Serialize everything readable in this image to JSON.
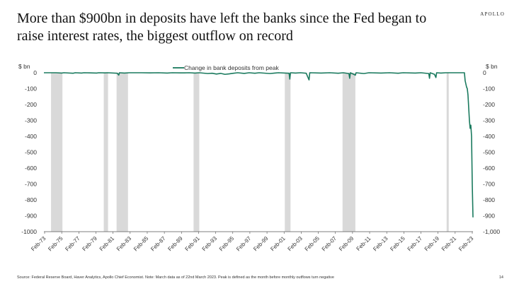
{
  "slide": {
    "title": "More than $900bn in deposits have left the banks since the Fed began to raise interest rates, the biggest outflow on record",
    "brand": "APOLLO",
    "source": "Source: Federal Reserve Board, Haver Analytics, Apollo Chief Economist. Note: March data as of 22nd March 2023. Peak is defined as the month before monthly outflows turn negative",
    "page_number": "14"
  },
  "colors": {
    "line": "#1a7a5e",
    "recession": "#d9d9d9",
    "axis": "#555555"
  },
  "chart_data": {
    "type": "line",
    "title": "",
    "xlabel": "",
    "ylabel_left": "$ bn",
    "ylabel_right": "$ bn",
    "legend": {
      "label": "Change in bank deposits from peak",
      "position": "top-center"
    },
    "grid": false,
    "xlim": [
      "1973-01",
      "2023-03"
    ],
    "ylim": [
      -1000,
      0
    ],
    "yticks": [
      0,
      -100,
      -200,
      -300,
      -400,
      -500,
      -600,
      -700,
      -800,
      -900,
      -1000
    ],
    "ytick_labels_left": [
      "0",
      "-100",
      "-200",
      "-300",
      "-400",
      "-500",
      "-600",
      "-700",
      "-800",
      "-900",
      "-1000"
    ],
    "ytick_labels_right": [
      "0",
      "-100",
      "-200",
      "-300",
      "-400",
      "-500",
      "-600",
      "-700",
      "-800",
      "-900",
      "-1,000"
    ],
    "xtick_labels": [
      "Feb-73",
      "Feb-75",
      "Feb-77",
      "Feb-79",
      "Feb-81",
      "Feb-83",
      "Feb-85",
      "Feb-87",
      "Feb-89",
      "Feb-91",
      "Feb-93",
      "Feb-95",
      "Feb-97",
      "Feb-99",
      "Feb-01",
      "Feb-03",
      "Feb-05",
      "Feb-07",
      "Feb-09",
      "Feb-11",
      "Feb-13",
      "Feb-15",
      "Feb-17",
      "Feb-19",
      "Feb-21",
      "Feb-23"
    ],
    "recessions": [
      [
        "1973-11",
        "1975-03"
      ],
      [
        "1980-01",
        "1980-07"
      ],
      [
        "1981-07",
        "1982-11"
      ],
      [
        "1990-07",
        "1991-03"
      ],
      [
        "2001-03",
        "2001-11"
      ],
      [
        "2007-12",
        "2009-06"
      ],
      [
        "2020-02",
        "2020-04"
      ]
    ],
    "series": [
      {
        "name": "Change in bank deposits from peak",
        "points": [
          [
            "1973-01",
            0
          ],
          [
            "1974-06",
            0
          ],
          [
            "1975-02",
            -2
          ],
          [
            "1975-05",
            0
          ],
          [
            "1976-06",
            -3
          ],
          [
            "1976-09",
            0
          ],
          [
            "1977-06",
            -2
          ],
          [
            "1977-09",
            0
          ],
          [
            "1978-06",
            -1
          ],
          [
            "1979-03",
            -2
          ],
          [
            "1979-06",
            0
          ],
          [
            "1980-03",
            -1
          ],
          [
            "1980-06",
            0
          ],
          [
            "1981-08",
            -3
          ],
          [
            "1981-10",
            -15
          ],
          [
            "1981-11",
            0
          ],
          [
            "1982-06",
            -2
          ],
          [
            "1983-01",
            0
          ],
          [
            "1984-06",
            0
          ],
          [
            "1985-06",
            -1
          ],
          [
            "1986-06",
            0
          ],
          [
            "1987-06",
            -2
          ],
          [
            "1988-01",
            0
          ],
          [
            "1989-06",
            -1
          ],
          [
            "1990-01",
            0
          ],
          [
            "1990-09",
            -2
          ],
          [
            "1991-03",
            0
          ],
          [
            "1992-03",
            -5
          ],
          [
            "1992-09",
            -3
          ],
          [
            "1993-03",
            -8
          ],
          [
            "1993-09",
            -4
          ],
          [
            "1994-03",
            -10
          ],
          [
            "1994-09",
            -7
          ],
          [
            "1995-03",
            -3
          ],
          [
            "1995-09",
            0
          ],
          [
            "1996-06",
            -4
          ],
          [
            "1997-01",
            0
          ],
          [
            "1997-09",
            -3
          ],
          [
            "1998-03",
            0
          ],
          [
            "1999-06",
            -5
          ],
          [
            "2000-01",
            -2
          ],
          [
            "2000-06",
            0
          ],
          [
            "2001-09",
            -3
          ],
          [
            "2001-10",
            -40
          ],
          [
            "2001-11",
            0
          ],
          [
            "2002-06",
            -2
          ],
          [
            "2003-01",
            0
          ],
          [
            "2003-09",
            -3
          ],
          [
            "2004-01",
            -45
          ],
          [
            "2004-02",
            0
          ],
          [
            "2005-06",
            -2
          ],
          [
            "2006-06",
            0
          ],
          [
            "2007-06",
            -3
          ],
          [
            "2008-01",
            0
          ],
          [
            "2008-09",
            -5
          ],
          [
            "2008-10",
            -35
          ],
          [
            "2008-11",
            0
          ],
          [
            "2009-06",
            -15
          ],
          [
            "2009-07",
            0
          ],
          [
            "2010-06",
            -5
          ],
          [
            "2011-01",
            0
          ],
          [
            "2012-06",
            -2
          ],
          [
            "2013-06",
            0
          ],
          [
            "2014-06",
            -3
          ],
          [
            "2015-01",
            0
          ],
          [
            "2016-06",
            -2
          ],
          [
            "2017-02",
            0
          ],
          [
            "2018-01",
            -5
          ],
          [
            "2018-02",
            -35
          ],
          [
            "2018-03",
            0
          ],
          [
            "2018-09",
            -10
          ],
          [
            "2018-11",
            -30
          ],
          [
            "2018-12",
            0
          ],
          [
            "2019-06",
            -2
          ],
          [
            "2020-01",
            0
          ],
          [
            "2021-06",
            0
          ],
          [
            "2022-03",
            0
          ],
          [
            "2022-04",
            -50
          ],
          [
            "2022-06",
            -90
          ],
          [
            "2022-07",
            -100
          ],
          [
            "2022-08",
            -140
          ],
          [
            "2022-09",
            -220
          ],
          [
            "2022-10",
            -300
          ],
          [
            "2022-11",
            -350
          ],
          [
            "2022-12",
            -330
          ],
          [
            "2023-01",
            -400
          ],
          [
            "2023-02",
            -700
          ],
          [
            "2023-03",
            -910
          ]
        ]
      }
    ]
  }
}
